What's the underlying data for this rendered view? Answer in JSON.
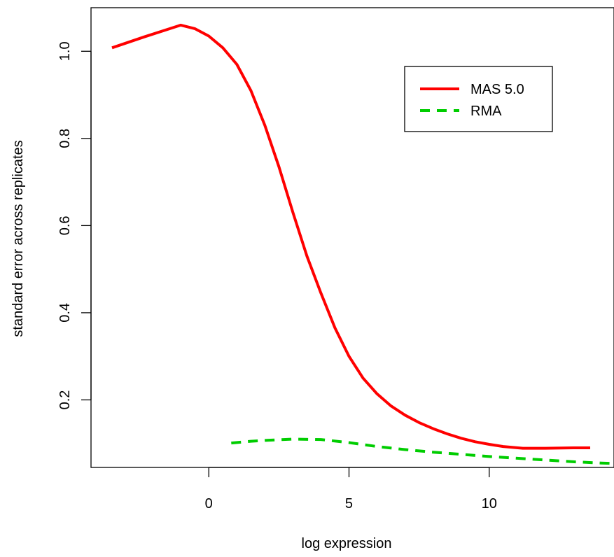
{
  "chart_data": {
    "type": "line",
    "title": "",
    "xlabel": "log expression",
    "ylabel": "standard error across replicates",
    "xlim": [
      -4.2,
      14.45
    ],
    "ylim": [
      0.045,
      1.1
    ],
    "x_ticks": [
      0,
      5,
      10
    ],
    "x_tick_labels": [
      "0",
      "5",
      "10"
    ],
    "y_ticks": [
      0.2,
      0.4,
      0.6,
      0.8,
      1.0
    ],
    "y_tick_labels": [
      "0.2",
      "0.4",
      "0.6",
      "0.8",
      "1.0"
    ],
    "grid": false,
    "legend": {
      "position": "top-right",
      "entries": [
        {
          "label": "MAS 5.0",
          "color": "#ff0000",
          "style": "solid"
        },
        {
          "label": "RMA",
          "color": "#00cd00",
          "style": "dashed"
        }
      ]
    },
    "series": [
      {
        "name": "MAS 5.0",
        "color": "#ff0000",
        "style": "solid",
        "points": [
          [
            -3.45,
            1.008
          ],
          [
            -2.3,
            1.033
          ],
          [
            -1.0,
            1.06
          ],
          [
            -0.5,
            1.052
          ],
          [
            0.0,
            1.035
          ],
          [
            0.5,
            1.008
          ],
          [
            1.0,
            0.97
          ],
          [
            1.5,
            0.91
          ],
          [
            2.0,
            0.83
          ],
          [
            2.5,
            0.735
          ],
          [
            3.0,
            0.63
          ],
          [
            3.5,
            0.53
          ],
          [
            4.0,
            0.445
          ],
          [
            4.5,
            0.365
          ],
          [
            5.0,
            0.3
          ],
          [
            5.5,
            0.25
          ],
          [
            6.0,
            0.214
          ],
          [
            6.5,
            0.186
          ],
          [
            7.0,
            0.165
          ],
          [
            7.5,
            0.148
          ],
          [
            8.0,
            0.134
          ],
          [
            8.5,
            0.122
          ],
          [
            9.0,
            0.112
          ],
          [
            9.5,
            0.104
          ],
          [
            10.0,
            0.098
          ],
          [
            10.5,
            0.093
          ],
          [
            11.2,
            0.089
          ],
          [
            12.0,
            0.089
          ],
          [
            13.0,
            0.09
          ],
          [
            13.6,
            0.09
          ]
        ]
      },
      {
        "name": "RMA",
        "color": "#00cd00",
        "style": "dashed",
        "points": [
          [
            0.8,
            0.101
          ],
          [
            1.5,
            0.105
          ],
          [
            2.0,
            0.107
          ],
          [
            3.0,
            0.11
          ],
          [
            4.0,
            0.109
          ],
          [
            5.0,
            0.102
          ],
          [
            6.0,
            0.093
          ],
          [
            7.0,
            0.086
          ],
          [
            8.0,
            0.08
          ],
          [
            9.0,
            0.075
          ],
          [
            10.0,
            0.07
          ],
          [
            11.0,
            0.066
          ],
          [
            12.0,
            0.062
          ],
          [
            13.0,
            0.058
          ],
          [
            14.0,
            0.055
          ],
          [
            14.45,
            0.054
          ]
        ]
      }
    ]
  }
}
